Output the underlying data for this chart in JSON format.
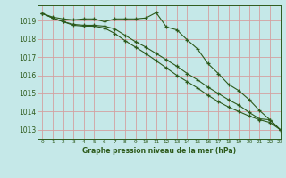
{
  "title": "Graphe pression niveau de la mer (hPa)",
  "background_color": "#c5e8e8",
  "grid_color": "#d4a0a0",
  "line_color": "#2d5a1b",
  "xlim": [
    -0.5,
    23
  ],
  "ylim": [
    1012.5,
    1019.85
  ],
  "yticks": [
    1013,
    1014,
    1015,
    1016,
    1017,
    1018,
    1019
  ],
  "xticks": [
    0,
    1,
    2,
    3,
    4,
    5,
    6,
    7,
    8,
    9,
    10,
    11,
    12,
    13,
    14,
    15,
    16,
    17,
    18,
    19,
    20,
    21,
    22,
    23
  ],
  "series1": [
    1019.4,
    1019.2,
    1019.1,
    1019.05,
    1019.1,
    1019.1,
    1018.95,
    1019.1,
    1019.1,
    1019.1,
    1019.15,
    1019.45,
    1018.65,
    1018.5,
    1017.95,
    1017.45,
    1016.65,
    1016.1,
    1015.5,
    1015.15,
    1014.65,
    1014.05,
    1013.55,
    1013.0
  ],
  "series2": [
    1019.4,
    1019.15,
    1018.95,
    1018.8,
    1018.75,
    1018.75,
    1018.7,
    1018.55,
    1018.2,
    1017.85,
    1017.55,
    1017.2,
    1016.85,
    1016.5,
    1016.1,
    1015.75,
    1015.35,
    1015.0,
    1014.65,
    1014.35,
    1013.95,
    1013.6,
    1013.55,
    1013.0
  ],
  "series3": [
    1019.4,
    1019.15,
    1018.95,
    1018.75,
    1018.7,
    1018.7,
    1018.6,
    1018.3,
    1017.9,
    1017.55,
    1017.2,
    1016.8,
    1016.4,
    1016.0,
    1015.65,
    1015.3,
    1014.9,
    1014.55,
    1014.25,
    1014.0,
    1013.75,
    1013.55,
    1013.4,
    1013.0
  ]
}
